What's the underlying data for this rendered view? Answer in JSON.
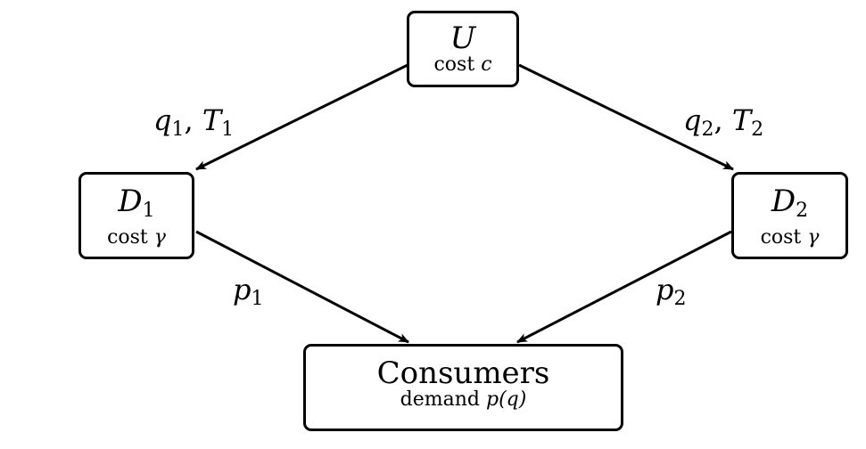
{
  "nodes": {
    "upstream": {
      "label": "U",
      "sublabel_text": "cost",
      "sublabel_var": "c"
    },
    "d1": {
      "label": "D",
      "subscript": "1",
      "sublabel_text": "cost",
      "sublabel_var": "γ"
    },
    "d2": {
      "label": "D",
      "subscript": "2",
      "sublabel_text": "cost",
      "sublabel_var": "γ"
    },
    "consumers": {
      "label": "Consumers",
      "sublabel_text": "demand",
      "sublabel_var": "p(q)"
    }
  },
  "edges": {
    "u_d1": {
      "var1": "q",
      "sub1": "1",
      "sep": ", ",
      "var2": "T",
      "sub2": "1"
    },
    "u_d2": {
      "var1": "q",
      "sub1": "2",
      "sep": ", ",
      "var2": "T",
      "sub2": "2"
    },
    "d1_c": {
      "var1": "p",
      "sub1": "1"
    },
    "d2_c": {
      "var1": "p",
      "sub1": "2"
    }
  },
  "colors": {
    "stroke": "#000000",
    "background": "#ffffff"
  }
}
